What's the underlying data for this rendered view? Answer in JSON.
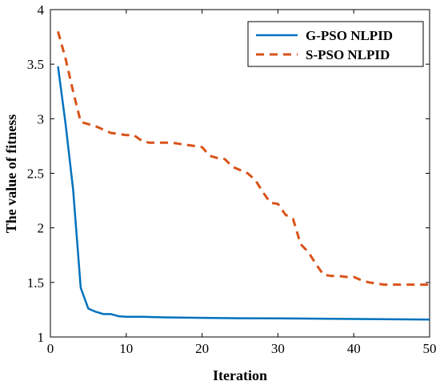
{
  "chart_data": {
    "type": "line",
    "title": "",
    "xlabel": "Iteration",
    "ylabel": "The value of fitness",
    "xlim": [
      0,
      50
    ],
    "ylim": [
      1,
      4
    ],
    "xticks": [
      0,
      10,
      20,
      30,
      40,
      50
    ],
    "yticks": [
      1,
      1.5,
      2,
      2.5,
      3,
      3.5,
      4
    ],
    "ytick_labels": [
      "1",
      "1.5",
      "2",
      "2.5",
      "3",
      "3.5",
      "4"
    ],
    "grid": false,
    "legend_position": "top-right",
    "series": [
      {
        "name": "G-PSO NLPID",
        "color": "#0072BD",
        "style": "solid",
        "points": [
          [
            1,
            3.48
          ],
          [
            2,
            2.95
          ],
          [
            3,
            2.35
          ],
          [
            4,
            1.45
          ],
          [
            5,
            1.26
          ],
          [
            6,
            1.23
          ],
          [
            7,
            1.21
          ],
          [
            8,
            1.21
          ],
          [
            9,
            1.19
          ],
          [
            10,
            1.185
          ],
          [
            12,
            1.185
          ],
          [
            15,
            1.18
          ],
          [
            20,
            1.175
          ],
          [
            25,
            1.172
          ],
          [
            30,
            1.17
          ],
          [
            35,
            1.168
          ],
          [
            40,
            1.165
          ],
          [
            45,
            1.162
          ],
          [
            50,
            1.16
          ]
        ]
      },
      {
        "name": "S-PSO NLPID",
        "color": "#D95319",
        "style": "dashed",
        "points": [
          [
            1,
            3.8
          ],
          [
            2,
            3.55
          ],
          [
            3,
            3.25
          ],
          [
            4,
            2.97
          ],
          [
            5,
            2.95
          ],
          [
            6,
            2.93
          ],
          [
            7,
            2.9
          ],
          [
            8,
            2.87
          ],
          [
            9,
            2.86
          ],
          [
            10,
            2.85
          ],
          [
            11,
            2.85
          ],
          [
            12,
            2.8
          ],
          [
            13,
            2.78
          ],
          [
            14,
            2.78
          ],
          [
            15,
            2.78
          ],
          [
            16,
            2.78
          ],
          [
            17,
            2.77
          ],
          [
            18,
            2.76
          ],
          [
            19,
            2.75
          ],
          [
            20,
            2.74
          ],
          [
            21,
            2.66
          ],
          [
            22,
            2.64
          ],
          [
            23,
            2.63
          ],
          [
            24,
            2.56
          ],
          [
            25,
            2.53
          ],
          [
            26,
            2.5
          ],
          [
            27,
            2.44
          ],
          [
            28,
            2.33
          ],
          [
            29,
            2.23
          ],
          [
            30,
            2.22
          ],
          [
            31,
            2.12
          ],
          [
            32,
            2.08
          ],
          [
            33,
            1.85
          ],
          [
            34,
            1.78
          ],
          [
            35,
            1.67
          ],
          [
            36,
            1.57
          ],
          [
            37,
            1.56
          ],
          [
            38,
            1.56
          ],
          [
            39,
            1.55
          ],
          [
            40,
            1.55
          ],
          [
            41,
            1.52
          ],
          [
            42,
            1.5
          ],
          [
            43,
            1.49
          ],
          [
            44,
            1.48
          ],
          [
            45,
            1.48
          ],
          [
            46,
            1.48
          ],
          [
            47,
            1.48
          ],
          [
            48,
            1.48
          ],
          [
            49,
            1.48
          ],
          [
            50,
            1.48
          ]
        ]
      }
    ]
  }
}
